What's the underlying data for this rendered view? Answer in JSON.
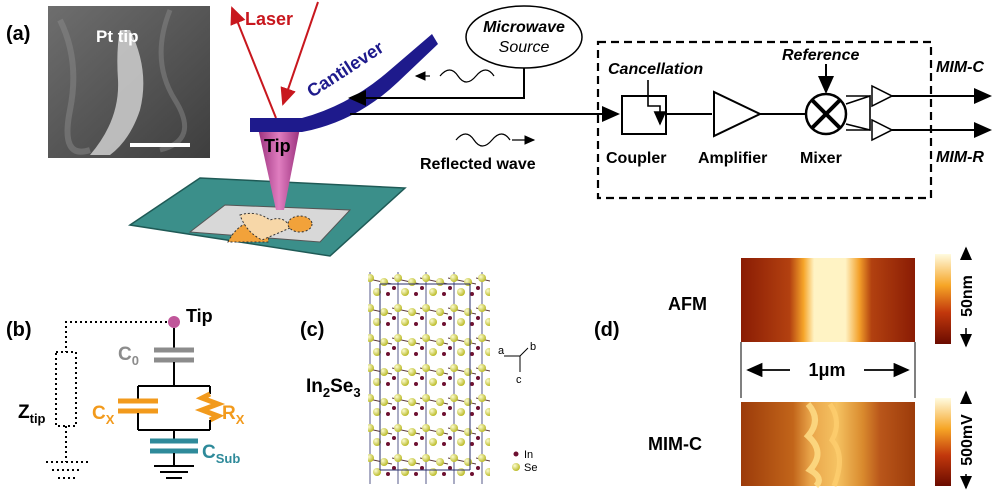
{
  "panel_a": {
    "label": "(a)",
    "sem_label": "Pt tip",
    "laser": "Laser",
    "cantilever": "Cantilever",
    "tip": "Tip",
    "microwave_line1": "Microwave",
    "microwave_line2": "Source",
    "reflected_wave": "Reflected wave",
    "cancellation": "Cancellation",
    "reference": "Reference",
    "coupler": "Coupler",
    "amplifier": "Amplifier",
    "mixer": "Mixer",
    "out_c": "MIM-C",
    "out_r": "MIM-R"
  },
  "panel_b": {
    "label": "(b)",
    "tip": "Tip",
    "c0_main": "C",
    "c0_sub": "0",
    "cx_main": "C",
    "cx_sub": "X",
    "rx_main": "R",
    "rx_sub": "X",
    "csub_main": "C",
    "csub_sub": "Sub",
    "ztip_main": "Z",
    "ztip_sub": "tip"
  },
  "panel_c": {
    "label": "(c)",
    "formula_1": "In",
    "formula_sub1": "2",
    "formula_2": "Se",
    "formula_sub2": "3",
    "axis_a": "a",
    "axis_b": "b",
    "axis_c": "c",
    "legend_in": "In",
    "legend_se": "Se"
  },
  "panel_d": {
    "label": "(d)",
    "afm": "AFM",
    "mim": "MIM-C",
    "scale": "1μm",
    "cbar_afm": "50nm",
    "cbar_mim": "500mV"
  },
  "colors": {
    "laser": "#c8171e",
    "cantilever": "#1e1a8c",
    "tip": "#c0569a",
    "stage": "#3b8f8a",
    "cap_gray": "#8c8c8c",
    "cap_orange": "#f29a1c",
    "cap_teal": "#2e8a9a",
    "heat_dark": "#7a0f00",
    "heat_light": "#fff6c8"
  }
}
